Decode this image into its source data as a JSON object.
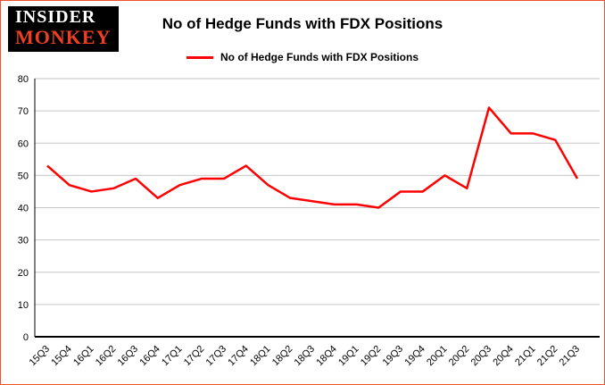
{
  "logo": {
    "line1": "INSIDER",
    "line2": "MONKEY"
  },
  "title": "No of Hedge Funds with FDX Positions",
  "legend_label": "No of Hedge Funds with FDX Positions",
  "colors": {
    "line": "#fe0000",
    "brand": "#ee3e23",
    "border": "#f0502d",
    "grid": "#c6c6c6",
    "axis": "#000000",
    "text": "#000000",
    "logo-bg": "#000000",
    "logo-text": "#ffffff"
  },
  "chart_data": {
    "type": "line",
    "title": "No of Hedge Funds with FDX Positions",
    "series_name": "No of Hedge Funds with FDX Positions",
    "categories": [
      "15Q3",
      "15Q4",
      "16Q1",
      "16Q2",
      "16Q3",
      "16Q4",
      "17Q1",
      "17Q2",
      "17Q3",
      "17Q4",
      "18Q1",
      "18Q2",
      "18Q3",
      "18Q4",
      "19Q1",
      "19Q2",
      "19Q3",
      "19Q4",
      "20Q1",
      "20Q2",
      "20Q3",
      "20Q4",
      "21Q1",
      "21Q2",
      "21Q3"
    ],
    "values": [
      53,
      47,
      45,
      46,
      49,
      43,
      47,
      49,
      49,
      53,
      47,
      43,
      42,
      41,
      41,
      40,
      45,
      45,
      50,
      46,
      71,
      63,
      63,
      61,
      49
    ],
    "xlabel": "",
    "ylabel": "",
    "ylim": [
      0,
      80
    ],
    "ytick_step": 10,
    "grid": true,
    "legend_position": "top"
  }
}
